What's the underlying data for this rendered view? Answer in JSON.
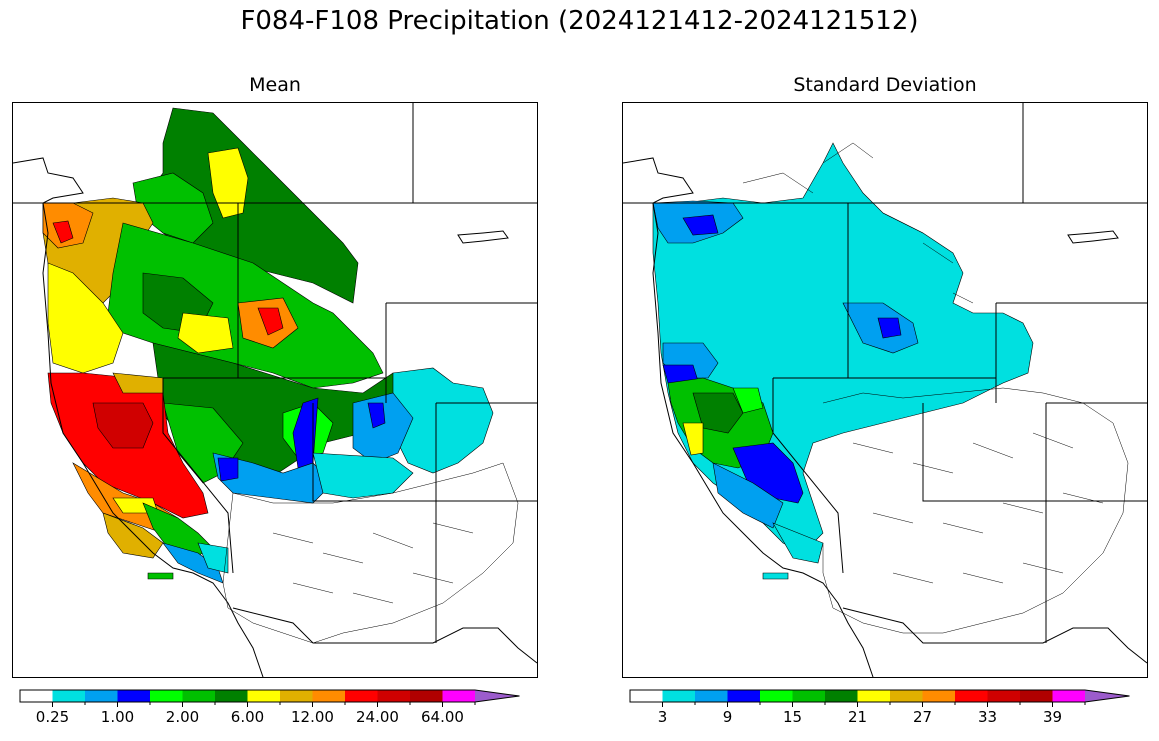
{
  "figure": {
    "title": "F084-F108 Precipitation (2024121412-2024121512)"
  },
  "panels": [
    {
      "id": "mean",
      "title": "Mean",
      "colorbar": {
        "colors": [
          "#ffffff",
          "#00e0e0",
          "#00a0f0",
          "#0000ff",
          "#00ff00",
          "#00c000",
          "#008000",
          "#ffff00",
          "#e0b000",
          "#ff8c00",
          "#ff0000",
          "#d00000",
          "#b00000",
          "#ff00ff",
          "#9c5ccc"
        ],
        "tick_labels": [
          "0.25",
          "1.00",
          "2.00",
          "6.00",
          "12.00",
          "24.00",
          "64.00"
        ],
        "extend": "max"
      },
      "legend_levels": [
        "0.25",
        "1.00",
        "2.00",
        "6.00",
        "12.00",
        "24.00",
        "64.00"
      ]
    },
    {
      "id": "stddev",
      "title": "Standard Deviation",
      "colorbar": {
        "colors": [
          "#ffffff",
          "#00e0e0",
          "#00a0f0",
          "#0000ff",
          "#00ff00",
          "#00c000",
          "#008000",
          "#ffff00",
          "#e0b000",
          "#ff8c00",
          "#ff0000",
          "#d00000",
          "#b00000",
          "#ff00ff",
          "#9c5ccc"
        ],
        "tick_labels": [
          "3",
          "9",
          "15",
          "21",
          "27",
          "33",
          "39"
        ],
        "extend": "max"
      },
      "legend_levels": [
        "3",
        "9",
        "15",
        "21",
        "27",
        "33",
        "39"
      ]
    }
  ]
}
